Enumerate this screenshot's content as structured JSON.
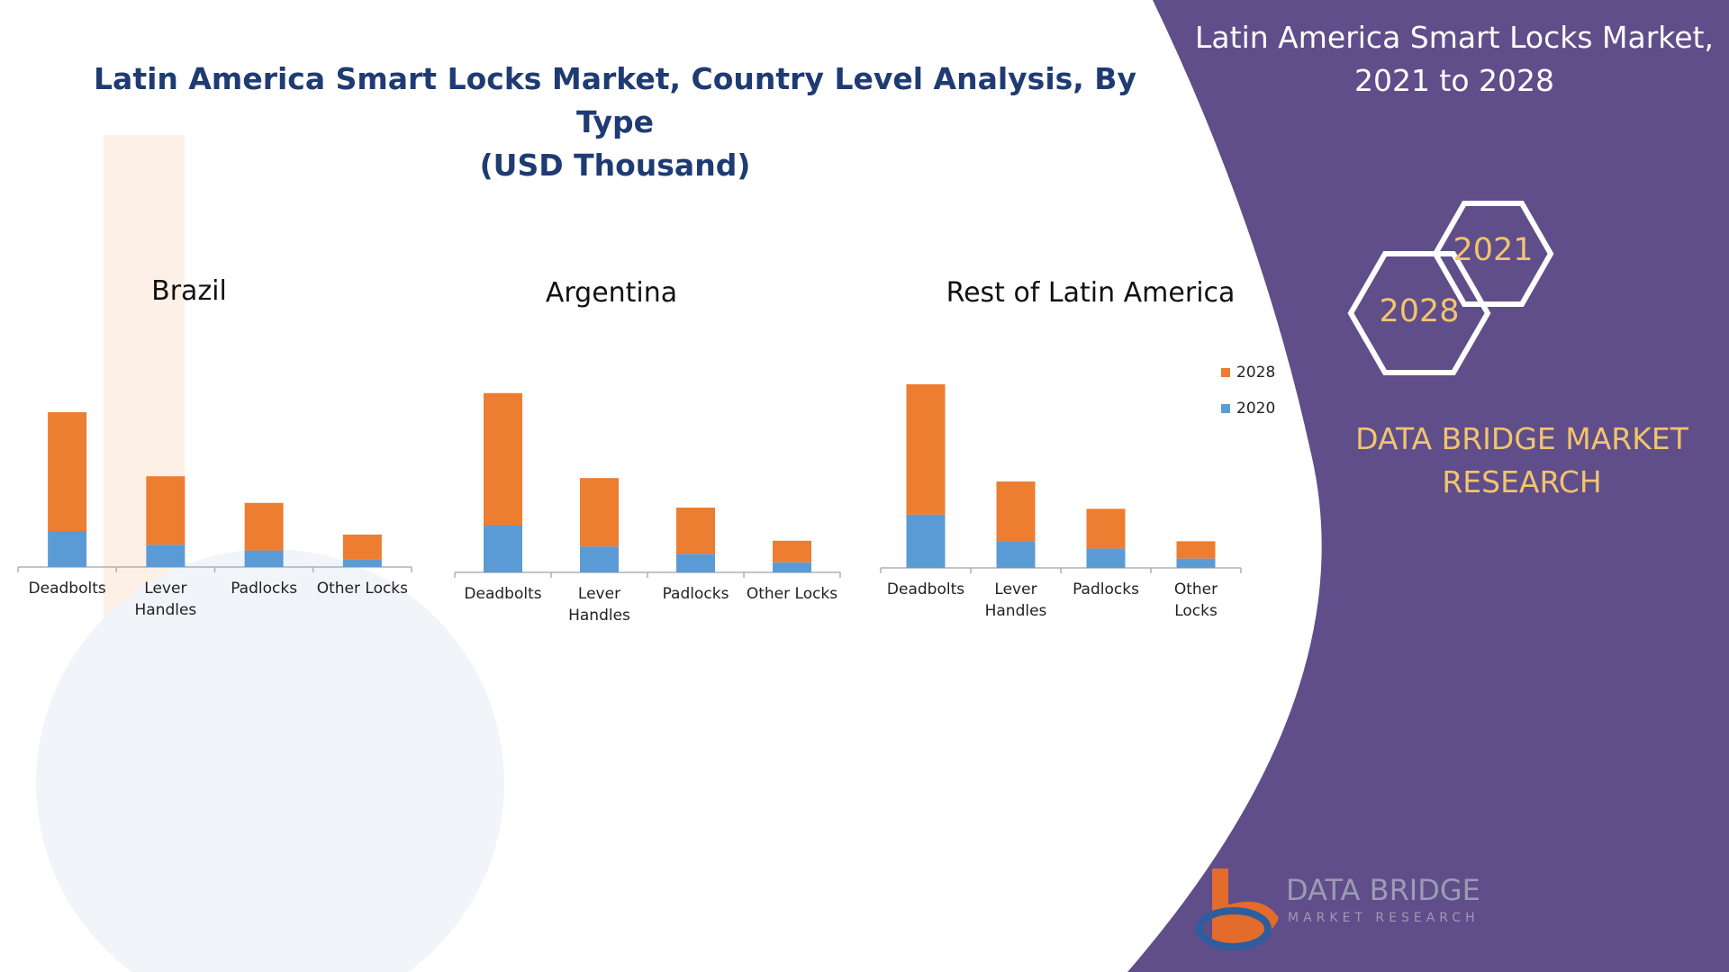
{
  "title_lines": [
    "Latin America Smart Locks Market, Country Level Analysis, By Type",
    "(USD Thousand)"
  ],
  "panel": {
    "title_lines": [
      "Latin America Smart Locks Market,",
      "2021 to 2028"
    ],
    "hex_top": "2021",
    "hex_bottom": "2028",
    "brand_lines": [
      "DATA BRIDGE MARKET",
      "RESEARCH"
    ],
    "logo_name": "DATA BRIDGE",
    "logo_sub": "MARKET RESEARCH",
    "logo_icon": "data-bridge-logo-icon"
  },
  "colors": {
    "series_2028": "#ed7d31",
    "series_2020": "#5b9bd5",
    "panel": "#5f4e8a",
    "accent": "#f2c46d"
  },
  "legend": [
    {
      "label": "2028",
      "color": "#ed7d31"
    },
    {
      "label": "2020",
      "color": "#5b9bd5"
    }
  ],
  "chart_data": [
    {
      "type": "bar",
      "stacked": true,
      "title": "Brazil",
      "categories": [
        "Deadbolts",
        "Lever Handles",
        "Padlocks",
        "Other Locks"
      ],
      "series": [
        {
          "name": "2020",
          "values": [
            50,
            31,
            23,
            11
          ]
        },
        {
          "name": "2028",
          "values": [
            165,
            95,
            66,
            34
          ]
        }
      ],
      "ylim": [
        0,
        260
      ]
    },
    {
      "type": "bar",
      "stacked": true,
      "title": "Argentina",
      "categories": [
        "Deadbolts",
        "Lever Handles",
        "Padlocks",
        "Other Locks"
      ],
      "series": [
        {
          "name": "2020",
          "values": [
            65,
            36,
            26,
            14
          ]
        },
        {
          "name": "2028",
          "values": [
            184,
            95,
            64,
            30
          ]
        }
      ],
      "ylim": [
        0,
        260
      ]
    },
    {
      "type": "bar",
      "stacked": true,
      "title": "Rest of Latin America",
      "categories": [
        "Deadbolts",
        "Lever Handles",
        "Padlocks",
        "Other Locks"
      ],
      "series": [
        {
          "name": "2020",
          "values": [
            74,
            37,
            27,
            13
          ]
        },
        {
          "name": "2028",
          "values": [
            181,
            83,
            55,
            24
          ]
        }
      ],
      "ylim": [
        0,
        260
      ]
    }
  ]
}
